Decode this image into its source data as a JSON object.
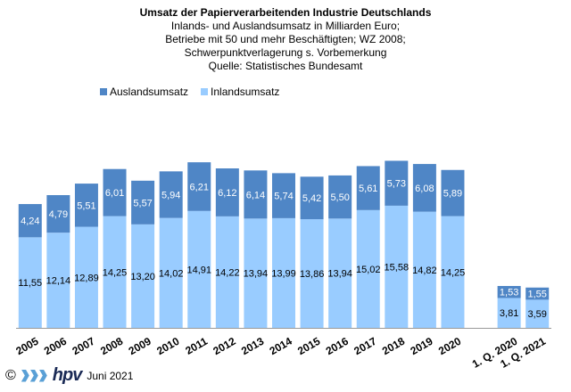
{
  "title": {
    "line1": "Umsatz der Papierverarbeitenden Industrie Deutschlands",
    "line2": "Inlands- und Auslandsumsatz in Milliarden Euro;",
    "line3": "Betriebe mit 50 und mehr Beschäftigten;  WZ 2008;",
    "line4": "Schwerpunktverlagerung  s. Vorbemerkung",
    "line5": "Quelle: Statistisches Bundesamt"
  },
  "legend": {
    "ausland": "Auslandsumsatz",
    "inland": "Inlandsumsatz"
  },
  "footer": {
    "copyright": "©",
    "brand": "hpv",
    "date": "Juni 2021"
  },
  "colors": {
    "inland": "#99CCFF",
    "ausland": "#4F86C6"
  },
  "chart_data": {
    "type": "bar",
    "stacked": true,
    "categories": [
      "2005",
      "2006",
      "2007",
      "2008",
      "2009",
      "2010",
      "2011",
      "2012",
      "2013",
      "2014",
      "2015",
      "2016",
      "2017",
      "2018",
      "2019",
      "2020",
      "",
      "1. Q. 2020",
      "1. Q. 2021"
    ],
    "series": [
      {
        "name": "Inlandsumsatz",
        "values": [
          11.55,
          12.14,
          12.89,
          14.25,
          13.2,
          14.02,
          14.91,
          14.22,
          13.94,
          13.99,
          13.86,
          13.94,
          15.02,
          15.58,
          14.82,
          14.25,
          null,
          3.81,
          3.59
        ],
        "labels": [
          "11,55",
          "12,14",
          "12,89",
          "14,25",
          "13,20",
          "14,02",
          "14,91",
          "14,22",
          "13,94",
          "13,99",
          "13,86",
          "13,94",
          "15,02",
          "15,58",
          "14,82",
          "14,25",
          "",
          "3,81",
          "3,59"
        ]
      },
      {
        "name": "Auslandsumsatz",
        "values": [
          4.24,
          4.79,
          5.51,
          6.01,
          5.57,
          5.94,
          6.21,
          6.12,
          6.14,
          5.74,
          5.42,
          5.5,
          5.61,
          5.73,
          6.08,
          5.89,
          null,
          1.53,
          1.55
        ],
        "labels": [
          "4,24",
          "4,79",
          "5,51",
          "6,01",
          "5,57",
          "5,94",
          "6,21",
          "6,12",
          "6,14",
          "5,74",
          "5,42",
          "5,50",
          "5,61",
          "5,73",
          "6,08",
          "5,89",
          "",
          "1,53",
          "1,55"
        ]
      }
    ],
    "legend_position": "top-left",
    "grid": false
  }
}
